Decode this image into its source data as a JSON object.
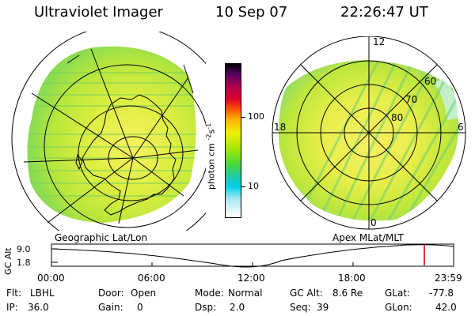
{
  "header": {
    "instrument": "Ultraviolet Imager",
    "date": "10 Sep 07",
    "time": "22:26:47 UT"
  },
  "colorbar": {
    "unit_label": "photon cm",
    "unit_sup1": "-2",
    "unit_mid": "s",
    "unit_sup2": "-1",
    "tick_100": "100",
    "tick_10": "10",
    "scale": "log",
    "stops": [
      "#000000",
      "#5a0066",
      "#b0004a",
      "#e0002a",
      "#ff5a00",
      "#ffb000",
      "#f0f000",
      "#a8e800",
      "#40d840",
      "#20c8b0",
      "#00d0e8",
      "#ffffff"
    ]
  },
  "left_map": {
    "caption": "Geographic Lat/Lon"
  },
  "right_map": {
    "caption": "Apex MLat/MLT",
    "mlt_12": "12",
    "mlt_18": "18",
    "mlt_6": "6",
    "mlt_0": "0",
    "lat_60": "60",
    "lat_70": "70",
    "lat_80": "80"
  },
  "altitude_plot": {
    "ylabel": "GC Alt",
    "ytick_top": "9.0",
    "ytick_bottom": "1.8",
    "xticks": [
      "00:00",
      "06:00",
      "12:00",
      "18:00",
      "23:59"
    ],
    "current_time_marker_color": "#cc0000"
  },
  "status": {
    "flt_label": "Flt:",
    "flt_value": "LBHL",
    "ip_label": "IP:",
    "ip_value": "36.0",
    "door_label": "Door:",
    "door_value": "Open",
    "gain_label": "Gain:",
    "gain_value": "0",
    "mode_label": "Mode:",
    "mode_value": "Normal",
    "dsp_label": "Dsp:",
    "dsp_value": "2.0",
    "gcalt_label": "GC Alt:",
    "gcalt_value": "8.6 Re",
    "seq_label": "Seq:",
    "seq_value": "39",
    "glat_label": "GLat:",
    "glat_value": "-77.8",
    "glon_label": "GLon:",
    "glon_value": "42.0"
  }
}
